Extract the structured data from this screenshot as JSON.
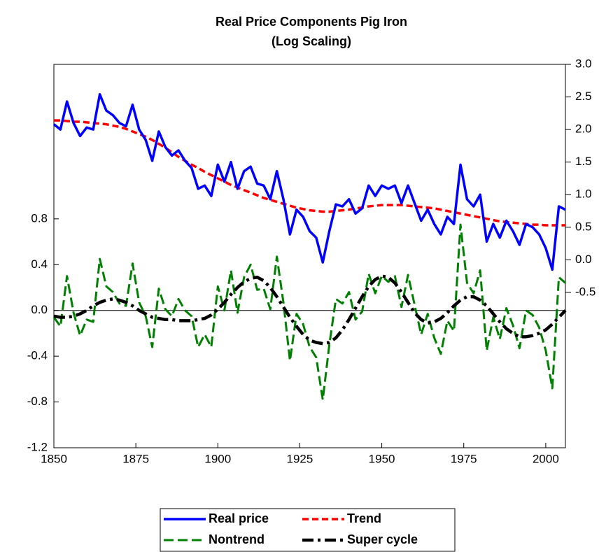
{
  "chart_data": {
    "type": "line",
    "title": "Real Price Components Pig Iron",
    "subtitle": "(Log Scaling)",
    "x": [
      1850,
      1852,
      1854,
      1856,
      1858,
      1860,
      1862,
      1864,
      1866,
      1868,
      1870,
      1872,
      1874,
      1876,
      1878,
      1880,
      1882,
      1884,
      1886,
      1888,
      1890,
      1892,
      1894,
      1896,
      1898,
      1900,
      1902,
      1904,
      1906,
      1908,
      1910,
      1912,
      1914,
      1916,
      1918,
      1920,
      1922,
      1924,
      1926,
      1928,
      1930,
      1932,
      1934,
      1936,
      1938,
      1940,
      1942,
      1944,
      1946,
      1948,
      1950,
      1952,
      1954,
      1956,
      1958,
      1960,
      1962,
      1964,
      1966,
      1968,
      1970,
      1972,
      1974,
      1976,
      1978,
      1980,
      1982,
      1984,
      1986,
      1988,
      1990,
      1992,
      1994,
      1996,
      1998,
      2000,
      2002,
      2004,
      2006
    ],
    "xlim": [
      1850,
      2006
    ],
    "xticks": [
      1850,
      1875,
      1900,
      1925,
      1950,
      1975,
      2000
    ],
    "ylim": [
      -1.2,
      2.15
    ],
    "yticks": [
      -1.2,
      -0.8,
      -0.4,
      {
        "value": 0,
        "label": "0.0"
      },
      0.4,
      0.8
    ],
    "y2lim": [
      -2.885,
      3.0
    ],
    "y2ticks": [
      -0.5,
      {
        "value": 0,
        "label": "0.0"
      },
      0.5,
      {
        "value": 1,
        "label": "1.0"
      },
      1.5,
      {
        "value": 2,
        "label": "2.0"
      },
      2.5,
      {
        "value": 3,
        "label": "3.0"
      }
    ],
    "zero_line": true,
    "series": [
      {
        "name": "Real price",
        "color": "#0000ff",
        "style": "solid",
        "axis": "y2",
        "values": [
          2.08,
          2.0,
          2.43,
          2.1,
          1.9,
          2.03,
          2.0,
          2.54,
          2.29,
          2.22,
          2.1,
          2.05,
          2.38,
          2.0,
          1.84,
          1.52,
          1.97,
          1.73,
          1.6,
          1.68,
          1.52,
          1.41,
          1.09,
          1.14,
          0.98,
          1.46,
          1.2,
          1.5,
          1.09,
          1.36,
          1.43,
          1.17,
          1.14,
          0.93,
          1.36,
          0.93,
          0.39,
          0.77,
          0.66,
          0.44,
          0.34,
          -0.04,
          0.44,
          0.85,
          0.82,
          0.93,
          0.71,
          0.79,
          1.14,
          0.98,
          1.14,
          1.09,
          1.14,
          0.87,
          1.14,
          0.87,
          0.6,
          0.77,
          0.55,
          0.39,
          0.66,
          0.55,
          1.46,
          0.93,
          0.82,
          1.0,
          0.28,
          0.55,
          0.34,
          0.6,
          0.44,
          0.23,
          0.55,
          0.5,
          0.39,
          0.18,
          -0.15,
          0.82,
          0.77
        ]
      },
      {
        "name": "Trend",
        "color": "#ff0000",
        "style": "dashed",
        "axis": "y2",
        "values": [
          2.14,
          2.14,
          2.13,
          2.12,
          2.12,
          2.11,
          2.1,
          2.09,
          2.08,
          2.06,
          2.04,
          2.01,
          1.97,
          1.93,
          1.89,
          1.84,
          1.78,
          1.72,
          1.65,
          1.58,
          1.52,
          1.46,
          1.41,
          1.35,
          1.3,
          1.25,
          1.2,
          1.15,
          1.11,
          1.07,
          1.03,
          0.99,
          0.95,
          0.92,
          0.89,
          0.86,
          0.83,
          0.8,
          0.78,
          0.76,
          0.75,
          0.74,
          0.74,
          0.75,
          0.76,
          0.77,
          0.79,
          0.8,
          0.82,
          0.83,
          0.84,
          0.84,
          0.84,
          0.84,
          0.83,
          0.82,
          0.81,
          0.8,
          0.79,
          0.77,
          0.75,
          0.73,
          0.71,
          0.69,
          0.67,
          0.65,
          0.63,
          0.61,
          0.59,
          0.58,
          0.57,
          0.56,
          0.55,
          0.54,
          0.54,
          0.53,
          0.53,
          0.53,
          0.53
        ]
      },
      {
        "name": "Nontrend",
        "color": "#008000",
        "style": "long-dashed",
        "values": [
          -0.06,
          -0.14,
          0.3,
          -0.02,
          -0.22,
          -0.08,
          -0.1,
          0.45,
          0.21,
          0.16,
          0.06,
          0.04,
          0.41,
          0.07,
          -0.05,
          -0.32,
          0.19,
          0.01,
          -0.05,
          0.1,
          0.0,
          -0.05,
          -0.32,
          -0.21,
          -0.32,
          0.21,
          0.0,
          0.35,
          -0.02,
          0.29,
          0.4,
          0.18,
          0.19,
          0.01,
          0.47,
          0.07,
          -0.44,
          -0.03,
          -0.12,
          -0.32,
          -0.41,
          -0.78,
          -0.3,
          0.1,
          0.06,
          0.16,
          -0.08,
          -0.01,
          0.32,
          0.15,
          0.3,
          0.25,
          0.3,
          0.03,
          0.31,
          0.05,
          -0.21,
          -0.03,
          -0.24,
          -0.38,
          -0.09,
          -0.18,
          0.75,
          0.24,
          0.15,
          0.35,
          -0.35,
          -0.06,
          -0.25,
          0.02,
          -0.13,
          -0.33,
          0.0,
          -0.04,
          -0.15,
          -0.35,
          -0.68,
          0.29,
          0.24
        ]
      },
      {
        "name": "Super cycle",
        "color": "#000000",
        "style": "dash-dot",
        "values": [
          -0.05,
          -0.06,
          -0.06,
          -0.05,
          -0.03,
          0.0,
          0.04,
          0.07,
          0.09,
          0.1,
          0.09,
          0.07,
          0.04,
          0.0,
          -0.03,
          -0.06,
          -0.07,
          -0.08,
          -0.08,
          -0.09,
          -0.09,
          -0.09,
          -0.08,
          -0.07,
          -0.04,
          0.01,
          0.07,
          0.14,
          0.2,
          0.25,
          0.28,
          0.29,
          0.26,
          0.2,
          0.12,
          0.03,
          -0.06,
          -0.14,
          -0.21,
          -0.26,
          -0.28,
          -0.29,
          -0.28,
          -0.24,
          -0.17,
          -0.08,
          0.02,
          0.12,
          0.21,
          0.27,
          0.3,
          0.29,
          0.24,
          0.16,
          0.07,
          -0.02,
          -0.08,
          -0.11,
          -0.1,
          -0.07,
          -0.02,
          0.04,
          0.09,
          0.12,
          0.12,
          0.09,
          0.04,
          -0.03,
          -0.1,
          -0.16,
          -0.2,
          -0.23,
          -0.23,
          -0.22,
          -0.2,
          -0.17,
          -0.12,
          -0.06,
          0.0
        ]
      }
    ]
  }
}
